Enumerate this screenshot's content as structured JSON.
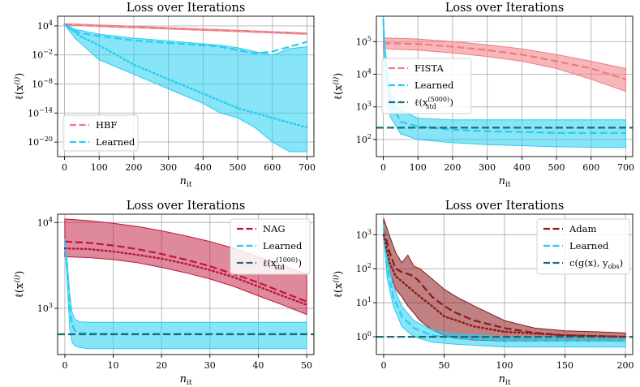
{
  "chart_data": [
    {
      "type": "line",
      "title": "Loss over Iterations",
      "xlabel": "n_it",
      "ylabel": "ℓ(x^(i))",
      "yscale": "log",
      "xlim": [
        -20,
        720
      ],
      "ylim": [
        1e-23,
        1000000.0
      ],
      "xticks": [
        0,
        100,
        200,
        300,
        400,
        500,
        600,
        700
      ],
      "yticks": [
        {
          "value": 10000.0,
          "mant": "10",
          "exp": "4"
        },
        {
          "value": 0.01,
          "mant": "10",
          "exp": "−2"
        },
        {
          "value": 1e-08,
          "mant": "10",
          "exp": "−8"
        },
        {
          "value": 1e-14,
          "mant": "10",
          "exp": "−14"
        },
        {
          "value": 1e-20,
          "mant": "10",
          "exp": "−20"
        }
      ],
      "legend_position": "lower-left",
      "series": [
        {
          "name": "HBF",
          "color": "#f07a82",
          "dash": "dashed",
          "x": [
            0,
            100,
            200,
            300,
            400,
            500,
            600,
            700
          ],
          "y": [
            20000,
            9000,
            5000,
            3000,
            1800,
            1000,
            500,
            250
          ]
        },
        {
          "name": "Learned",
          "color": "#27cdf0",
          "dash": "dashed",
          "x": [
            0,
            20,
            50,
            100,
            200,
            300,
            400,
            450,
            500,
            550,
            600,
            650,
            700
          ],
          "y": [
            20000,
            1500,
            300,
            80,
            10,
            3,
            1,
            0.5,
            0.1,
            0.02,
            0.05,
            0.5,
            5
          ]
        },
        {
          "name": "",
          "color": "#27cdf0",
          "dash": "dotted",
          "x": [
            0,
            50,
            100,
            200,
            300,
            400,
            500,
            600,
            700
          ],
          "y": [
            20000,
            50,
            1,
            0.0001,
            1e-07,
            1e-10,
            1e-13,
            1e-15,
            1e-17
          ]
        }
      ],
      "bands": [
        {
          "color": "#27cdf0",
          "opacity": 0.55,
          "x": [
            0,
            30,
            100,
            200,
            300,
            400,
            450,
            500,
            550,
            600,
            650,
            700
          ],
          "lower": [
            20000,
            30,
            0.001,
            1e-06,
            1e-09,
            1e-12,
            1e-14,
            1e-15,
            1e-17,
            1e-20,
            1e-22,
            1e-22
          ],
          "upper": [
            20000,
            2000,
            200,
            30,
            8,
            2,
            1,
            0.3,
            0.05,
            0.01,
            0.2,
            0.5
          ]
        },
        {
          "color": "#f07a82",
          "opacity": 0.5,
          "x": [
            0,
            700
          ],
          "lower": [
            15000,
            180
          ],
          "upper": [
            30000,
            350
          ]
        }
      ]
    },
    {
      "type": "line",
      "title": "Loss over Iterations",
      "xlabel": "n_it",
      "ylabel": "ℓ(x^(i))",
      "yscale": "log",
      "xlim": [
        -20,
        720
      ],
      "ylim": [
        30,
        600000
      ],
      "xticks": [
        0,
        100,
        200,
        300,
        400,
        500,
        600,
        700
      ],
      "yticks": [
        {
          "value": 100,
          "mant": "10",
          "exp": "2"
        },
        {
          "value": 1000,
          "mant": "10",
          "exp": "3"
        },
        {
          "value": 10000,
          "mant": "10",
          "exp": "4"
        },
        {
          "value": 100000,
          "mant": "10",
          "exp": "5"
        }
      ],
      "legend_position": "center-left",
      "series": [
        {
          "name": "FISTA",
          "color": "#f07a82",
          "dash": "dashed",
          "x": [
            0,
            100,
            200,
            300,
            400,
            500,
            600,
            700
          ],
          "y": [
            90000,
            85000,
            70000,
            55000,
            40000,
            25000,
            15000,
            7000
          ]
        },
        {
          "name": "Learned",
          "color": "#27cdf0",
          "dash": "dashed",
          "x": [
            0,
            5,
            20,
            50,
            100,
            200,
            300,
            400,
            500,
            600,
            700
          ],
          "y": [
            500000,
            30000,
            1500,
            350,
            250,
            200,
            180,
            170,
            160,
            160,
            160
          ]
        },
        {
          "name": "ℓ(x_std^(5000))",
          "color": "#1b6b78",
          "dash": "dashed",
          "x": [
            -20,
            720
          ],
          "y": [
            230,
            230
          ]
        }
      ],
      "bands": [
        {
          "color": "#f07a82",
          "opacity": 0.55,
          "x": [
            0,
            100,
            200,
            300,
            400,
            500,
            600,
            700
          ],
          "lower": [
            60000,
            55000,
            45000,
            35000,
            25000,
            15000,
            7000,
            3000
          ],
          "upper": [
            130000,
            120000,
            100000,
            80000,
            60000,
            40000,
            25000,
            15000
          ]
        },
        {
          "color": "#27cdf0",
          "opacity": 0.55,
          "x": [
            0,
            5,
            20,
            50,
            100,
            200,
            300,
            400,
            500,
            600,
            700
          ],
          "lower": [
            400000,
            10000,
            500,
            150,
            100,
            80,
            70,
            65,
            60,
            58,
            57
          ],
          "upper": [
            600000,
            60000,
            3000,
            800,
            450,
            400,
            400,
            400,
            400,
            400,
            400
          ]
        }
      ]
    },
    {
      "type": "line",
      "title": "Loss over Iterations",
      "xlabel": "n_it",
      "ylabel": "ℓ(x^(i))",
      "yscale": "log",
      "xlim": [
        -1.5,
        51.5
      ],
      "ylim": [
        290,
        12500
      ],
      "xticks": [
        0,
        10,
        20,
        30,
        40,
        50
      ],
      "yticks": [
        {
          "value": 1000,
          "mant": "10",
          "exp": "3"
        },
        {
          "value": 10000,
          "mant": "10",
          "exp": "4"
        }
      ],
      "legend_position": "upper-right",
      "series": [
        {
          "name": "NAG",
          "color": "#c0143c",
          "dash": "dashed",
          "x": [
            0,
            5,
            10,
            15,
            20,
            25,
            30,
            35,
            40,
            45,
            50
          ],
          "y": [
            6000,
            5800,
            5400,
            4900,
            4300,
            3700,
            3100,
            2500,
            2000,
            1550,
            1200
          ]
        },
        {
          "name": "Learned",
          "color": "#27cdf0",
          "dash": "dashed",
          "x": [
            0,
            0.5,
            1,
            1.5,
            2,
            3,
            5,
            10,
            20,
            30,
            40,
            50
          ],
          "y": [
            6000,
            3000,
            1000,
            650,
            560,
            520,
            510,
            505,
            505,
            505,
            505,
            505
          ]
        },
        {
          "name": "ℓ(x_std^(1000))",
          "color": "#1b6b78",
          "dash": "dashed",
          "x": [
            -1.5,
            51.5
          ],
          "y": [
            500,
            500
          ]
        },
        {
          "name": "",
          "color": "#c0143c",
          "dash": "dotted",
          "x": [
            0,
            5,
            10,
            15,
            20,
            25,
            30,
            35,
            40,
            45,
            50
          ],
          "y": [
            5000,
            4900,
            4600,
            4200,
            3800,
            3300,
            2800,
            2300,
            1800,
            1400,
            1100
          ]
        }
      ],
      "bands": [
        {
          "color": "#c0143c",
          "opacity": 0.5,
          "x": [
            0,
            5,
            10,
            15,
            20,
            25,
            30,
            35,
            40,
            45,
            50
          ],
          "lower": [
            4000,
            3900,
            3700,
            3400,
            3000,
            2600,
            2200,
            1800,
            1400,
            1100,
            850
          ],
          "upper": [
            11000,
            10500,
            9800,
            9000,
            8000,
            7000,
            6000,
            5000,
            4000,
            3200,
            2500
          ]
        },
        {
          "color": "#27cdf0",
          "opacity": 0.55,
          "x": [
            0,
            0.5,
            1,
            1.5,
            2,
            3,
            5,
            10,
            20,
            30,
            40,
            50
          ],
          "lower": [
            5500,
            2000,
            600,
            400,
            370,
            350,
            340,
            340,
            340,
            340,
            340,
            340
          ],
          "upper": [
            6500,
            3500,
            1500,
            900,
            750,
            700,
            690,
            690,
            690,
            690,
            690,
            690
          ]
        }
      ]
    },
    {
      "type": "line",
      "title": "Loss over Iterations",
      "xlabel": "n_it",
      "ylabel": "ℓ(x^(i))",
      "yscale": "log",
      "xlim": [
        -6,
        206
      ],
      "ylim": [
        0.3,
        4000
      ],
      "xticks": [
        0,
        50,
        100,
        150,
        200
      ],
      "yticks": [
        {
          "value": 1,
          "mant": "10",
          "exp": "0"
        },
        {
          "value": 10,
          "mant": "10",
          "exp": "1"
        },
        {
          "value": 100,
          "mant": "10",
          "exp": "2"
        },
        {
          "value": 1000,
          "mant": "10",
          "exp": "3"
        }
      ],
      "legend_position": "upper-right",
      "series": [
        {
          "name": "Adam",
          "color": "#8b1a1a",
          "dash": "dashed",
          "x": [
            0,
            5,
            10,
            15,
            20,
            25,
            30,
            40,
            50,
            60,
            75,
            100,
            125,
            150,
            175,
            200
          ],
          "y": [
            1500,
            300,
            100,
            80,
            70,
            60,
            40,
            15,
            8,
            5,
            3,
            1.8,
            1.3,
            1.1,
            1.05,
            1.0
          ]
        },
        {
          "name": "Learned",
          "color": "#27cdf0",
          "dash": "dashed",
          "x": [
            0,
            3,
            8,
            15,
            25,
            40,
            60,
            80,
            100,
            150,
            200
          ],
          "y": [
            1500,
            100,
            15,
            4,
            1.8,
            1.1,
            0.9,
            0.85,
            0.8,
            0.78,
            0.75
          ]
        },
        {
          "name": "c(g(x), y_obs)",
          "color": "#1b6b78",
          "dash": "dashed",
          "x": [
            -6,
            206
          ],
          "y": [
            1.0,
            1.0
          ]
        },
        {
          "name": "",
          "color": "#8b1a1a",
          "dash": "dotted",
          "x": [
            0,
            5,
            10,
            20,
            30,
            40,
            50,
            75,
            100,
            150,
            200
          ],
          "y": [
            1000,
            150,
            60,
            30,
            15,
            8,
            4,
            2,
            1.4,
            1.1,
            1.0
          ]
        }
      ],
      "bands": [
        {
          "color": "#8b1a1a",
          "opacity": 0.55,
          "x": [
            0,
            5,
            10,
            15,
            20,
            25,
            30,
            40,
            50,
            60,
            75,
            100,
            125,
            150,
            175,
            200
          ],
          "lower": [
            800,
            80,
            25,
            15,
            8,
            5,
            3,
            1.6,
            1.1,
            0.9,
            0.8,
            0.75,
            0.75,
            0.75,
            0.75,
            0.75
          ],
          "upper": [
            3000,
            900,
            300,
            150,
            250,
            120,
            100,
            50,
            25,
            15,
            8,
            3,
            1.8,
            1.5,
            1.4,
            1.3
          ]
        },
        {
          "color": "#27cdf0",
          "opacity": 0.55,
          "x": [
            0,
            3,
            8,
            15,
            25,
            40,
            60,
            80,
            100,
            150,
            200
          ],
          "lower": [
            1000,
            50,
            8,
            2,
            1,
            0.7,
            0.6,
            0.55,
            0.5,
            0.5,
            0.5
          ],
          "upper": [
            2000,
            200,
            30,
            8,
            3,
            1.6,
            1.2,
            1.1,
            1.0,
            1.0,
            1.0
          ]
        }
      ]
    }
  ]
}
